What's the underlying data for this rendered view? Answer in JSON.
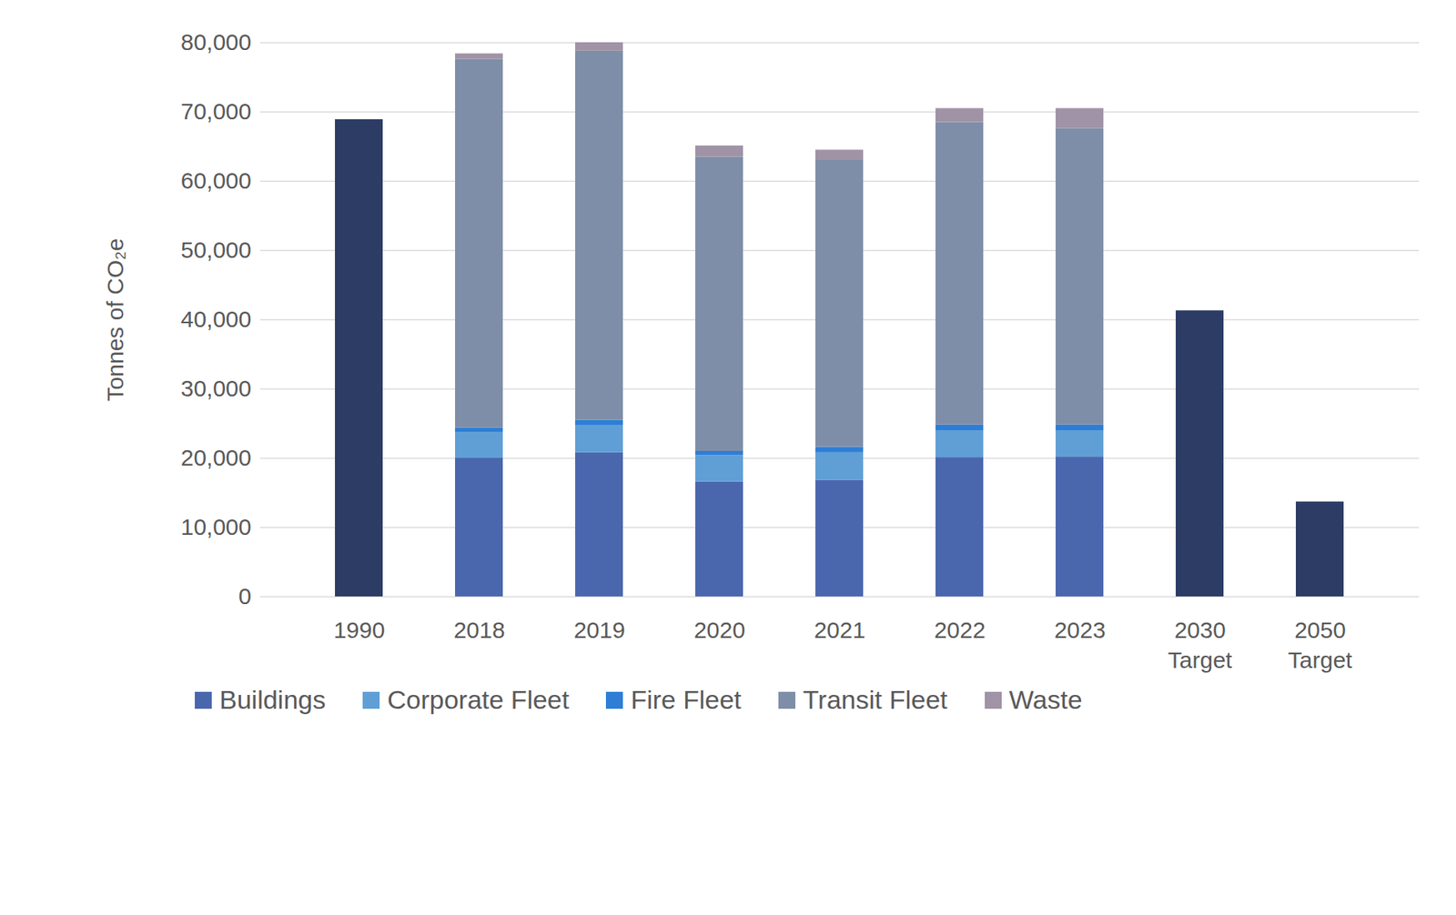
{
  "chart_data": {
    "type": "bar",
    "stacked": true,
    "grid": true,
    "legend": "bottom",
    "ylabel": "Tonnes of CO₂e",
    "categories": [
      "1990",
      "2018",
      "2019",
      "2020",
      "2021",
      "2022",
      "2023",
      "2030 Target",
      "2050 Target"
    ],
    "series": [
      {
        "name": null,
        "color": "#2c3c64",
        "values": [
          68900,
          null,
          null,
          null,
          null,
          null,
          null,
          41300,
          13700
        ]
      },
      {
        "name": "Buildings",
        "color": "#4a67ae",
        "values": [
          null,
          20000,
          20800,
          16600,
          16800,
          20100,
          20200,
          null,
          null
        ]
      },
      {
        "name": "Corporate Fleet",
        "color": "#5f9fd6",
        "values": [
          null,
          3700,
          3900,
          3800,
          4000,
          3900,
          3800,
          null,
          null
        ]
      },
      {
        "name": "Fire Fleet",
        "color": "#2e7ed6",
        "values": [
          null,
          700,
          800,
          600,
          800,
          800,
          800,
          null,
          null
        ]
      },
      {
        "name": "Transit Fleet",
        "color": "#7f8ea8",
        "values": [
          null,
          53200,
          53300,
          42500,
          41500,
          43700,
          42800,
          null,
          null
        ]
      },
      {
        "name": "Waste",
        "color": "#a093a6",
        "values": [
          null,
          800,
          1200,
          1600,
          1400,
          2000,
          2900,
          null,
          null
        ]
      }
    ],
    "ylim": [
      0,
      80000
    ],
    "yticks": [
      0,
      {
        "value": 10000,
        "label": "10,000"
      },
      {
        "value": 20000,
        "label": "20,000"
      },
      {
        "value": 30000,
        "label": "30,000"
      },
      {
        "value": 40000,
        "label": "40,000"
      },
      {
        "value": 50000,
        "label": "50,000"
      },
      {
        "value": 60000,
        "label": "60,000"
      },
      {
        "value": 70000,
        "label": "70,000"
      },
      {
        "value": 80000,
        "label": "80,000"
      }
    ]
  }
}
